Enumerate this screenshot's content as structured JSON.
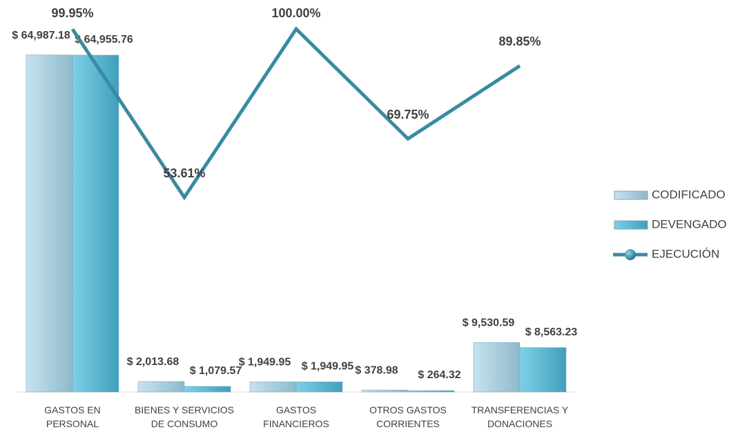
{
  "chart_data": {
    "type": "bar",
    "categories": [
      "GASTOS EN PERSONAL",
      "BIENES Y SERVICIOS DE CONSUMO",
      "GASTOS FINANCIEROS",
      "OTROS GASTOS CORRIENTES",
      "TRANSFERENCIAS Y DONACIONES"
    ],
    "series": [
      {
        "name": "CODIFICADO",
        "color": "#a9d1e2",
        "values": [
          64987.18,
          2013.68,
          1949.95,
          378.98,
          9530.59
        ],
        "value_labels": [
          "$ 64,987.18",
          "$ 2,013.68",
          "$ 1,949.95",
          "$ 378.98",
          "$ 9,530.59"
        ]
      },
      {
        "name": "DEVENGADO",
        "color": "#5fbcd8",
        "values": [
          64955.76,
          1079.57,
          1949.95,
          264.32,
          8563.23
        ],
        "value_labels": [
          "$ 64,955.76",
          "$ 1,079.57",
          "$ 1,949.95",
          "$ 264.32",
          "$ 8,563.23"
        ]
      },
      {
        "name": "EJECUCIÓN",
        "type": "line",
        "axis": "y2",
        "color": "#3a8aa0",
        "values": [
          99.95,
          53.61,
          100.0,
          69.75,
          89.85
        ],
        "value_labels": [
          "99.95%",
          "53.61%",
          "100.00%",
          "69.75%",
          "89.85%"
        ]
      }
    ],
    "ylim": [
      0,
      70000
    ],
    "y2lim": [
      0,
      100
    ],
    "legend": "right"
  }
}
